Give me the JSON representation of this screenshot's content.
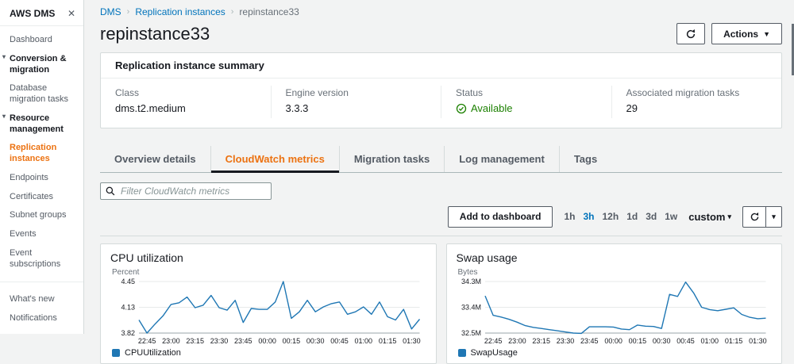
{
  "colors": {
    "accent_orange": "#ec7211",
    "link_blue": "#0073bb",
    "status_green": "#1d8102",
    "line_blue": "#1f77b4",
    "background": "#f2f3f3"
  },
  "sidebar": {
    "title": "AWS DMS",
    "items": [
      {
        "label": "Dashboard",
        "type": "link"
      },
      {
        "label": "Conversion & migration",
        "type": "section"
      },
      {
        "label": "Database migration tasks",
        "type": "link"
      },
      {
        "label": "Resource management",
        "type": "section"
      },
      {
        "label": "Replication instances",
        "type": "link",
        "selected": true
      },
      {
        "label": "Endpoints",
        "type": "link"
      },
      {
        "label": "Certificates",
        "type": "link"
      },
      {
        "label": "Subnet groups",
        "type": "link"
      },
      {
        "label": "Events",
        "type": "link"
      },
      {
        "label": "Event subscriptions",
        "type": "link"
      },
      {
        "type": "divider"
      },
      {
        "label": "What's new",
        "type": "link"
      },
      {
        "label": "Notifications",
        "type": "link"
      }
    ]
  },
  "breadcrumb": {
    "items": [
      {
        "label": "DMS",
        "link": true
      },
      {
        "label": "Replication instances",
        "link": true
      },
      {
        "label": "repinstance33",
        "link": false
      }
    ]
  },
  "header": {
    "title": "repinstance33",
    "actions_label": "Actions"
  },
  "summary": {
    "title": "Replication instance summary",
    "fields": [
      {
        "label": "Class",
        "value": "dms.t2.medium"
      },
      {
        "label": "Engine version",
        "value": "3.3.3"
      },
      {
        "label": "Status",
        "value": "Available",
        "status": true
      },
      {
        "label": "Associated migration tasks",
        "value": "29"
      }
    ]
  },
  "tabs": {
    "items": [
      {
        "label": "Overview details",
        "active": false
      },
      {
        "label": "CloudWatch metrics",
        "active": true
      },
      {
        "label": "Migration tasks",
        "active": false
      },
      {
        "label": "Log management",
        "active": false
      },
      {
        "label": "Tags",
        "active": false
      }
    ]
  },
  "filter": {
    "placeholder": "Filter CloudWatch metrics"
  },
  "controls": {
    "add_to_dashboard": "Add to dashboard",
    "ranges": [
      "1h",
      "3h",
      "12h",
      "1d",
      "3d",
      "1w"
    ],
    "selected_range": "3h",
    "custom_label": "custom"
  },
  "chart_data": [
    {
      "type": "line",
      "title": "CPU utilization",
      "ylabel": "Percent",
      "legend": "CPUUtilization",
      "line_color": "#1f77b4",
      "ylim": [
        3.82,
        4.45
      ],
      "yticks": [
        "4.45",
        "4.13",
        "3.82"
      ],
      "x_ticklabels": [
        "22:45",
        "23:00",
        "23:15",
        "23:30",
        "23:45",
        "00:00",
        "00:15",
        "00:30",
        "00:45",
        "01:00",
        "01:15",
        "01:30"
      ],
      "values": [
        3.98,
        3.82,
        3.93,
        4.03,
        4.17,
        4.19,
        4.26,
        4.13,
        4.16,
        4.28,
        4.13,
        4.1,
        4.22,
        3.95,
        4.12,
        4.11,
        4.11,
        4.2,
        4.45,
        4.0,
        4.08,
        4.22,
        4.08,
        4.14,
        4.18,
        4.2,
        4.05,
        4.08,
        4.14,
        4.05,
        4.2,
        4.02,
        3.98,
        4.11,
        3.87,
        3.99
      ]
    },
    {
      "type": "line",
      "title": "Swap usage",
      "ylabel": "Bytes",
      "legend": "SwapUsage",
      "line_color": "#1f77b4",
      "ylim": [
        32.5,
        34.3
      ],
      "yticks": [
        "34.3M",
        "33.4M",
        "32.5M"
      ],
      "x_ticklabels": [
        "22:45",
        "23:00",
        "23:15",
        "23:30",
        "23:45",
        "00:00",
        "00:15",
        "00:30",
        "00:45",
        "01:00",
        "01:15",
        "01:30"
      ],
      "values": [
        33.8,
        33.12,
        33.06,
        32.98,
        32.88,
        32.76,
        32.7,
        32.66,
        32.62,
        32.58,
        32.54,
        32.5,
        32.49,
        32.72,
        32.72,
        32.72,
        32.71,
        32.64,
        32.62,
        32.78,
        32.74,
        32.73,
        32.66,
        33.85,
        33.78,
        34.28,
        33.9,
        33.4,
        33.32,
        33.28,
        33.33,
        33.38,
        33.15,
        33.05,
        33.0,
        33.02
      ]
    }
  ]
}
